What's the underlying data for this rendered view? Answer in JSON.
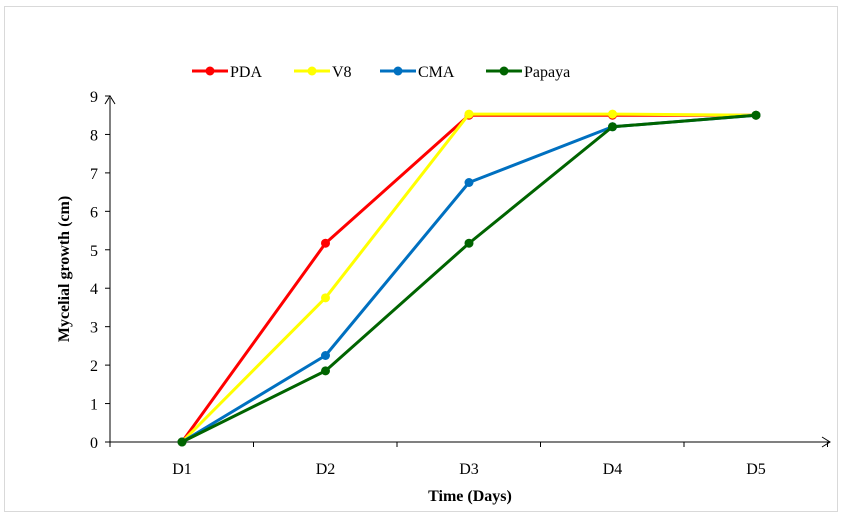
{
  "chart_data": {
    "type": "line",
    "categories": [
      "D1",
      "D2",
      "D3",
      "D4",
      "D5"
    ],
    "xlabel": "Time (Days)",
    "ylabel": "Mycelial growth (cm)",
    "ylim": [
      0,
      9
    ],
    "yticks": [
      0,
      1,
      2,
      3,
      4,
      5,
      6,
      7,
      8,
      9
    ],
    "grid": false,
    "legend_position": "top",
    "series": [
      {
        "name": "PDA",
        "color": "#ff0000",
        "values": [
          0,
          5.17,
          8.5,
          8.5,
          8.5
        ]
      },
      {
        "name": "V8",
        "color": "#ffff00",
        "values": [
          0,
          3.75,
          8.53,
          8.53,
          8.5
        ]
      },
      {
        "name": "CMA",
        "color": "#0070c0",
        "values": [
          0,
          2.25,
          6.75,
          8.2,
          8.5
        ]
      },
      {
        "name": "Papaya",
        "color": "#006400",
        "values": [
          0,
          1.85,
          5.17,
          8.2,
          8.5
        ]
      }
    ]
  }
}
